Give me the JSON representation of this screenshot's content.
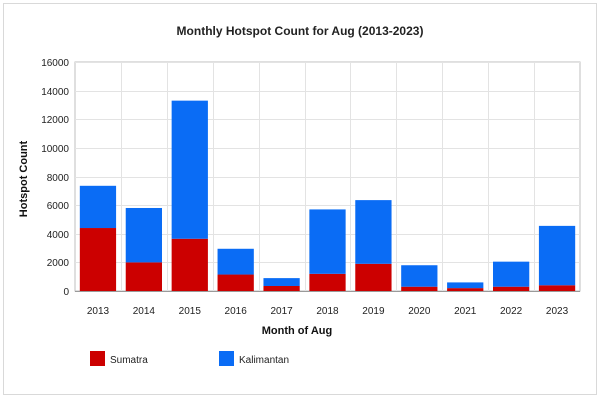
{
  "chart_data": {
    "type": "bar",
    "stacked": true,
    "title": "Monthly Hotspot Count for Aug (2013-2023)",
    "xlabel": "Month of Aug",
    "ylabel": "Hotspot Count",
    "ylim": [
      0,
      16000
    ],
    "yticks": [
      "0",
      "2000",
      "4000",
      "6000",
      "8000",
      "10000",
      "12000",
      "14000",
      "16000"
    ],
    "grid": true,
    "legend_position": "bottom-left",
    "categories": [
      "2013",
      "2014",
      "2015",
      "2016",
      "2017",
      "2018",
      "2019",
      "2020",
      "2021",
      "2022",
      "2023"
    ],
    "series": [
      {
        "name": "Sumatra",
        "color": "#cc0000",
        "values": [
          4400,
          2000,
          3650,
          1150,
          350,
          1200,
          1900,
          300,
          200,
          300,
          400
        ]
      },
      {
        "name": "Kalimantan",
        "color": "#0a6cf5",
        "values": [
          2950,
          3800,
          9650,
          1800,
          550,
          4500,
          4450,
          1500,
          400,
          1750,
          4150
        ]
      }
    ]
  }
}
